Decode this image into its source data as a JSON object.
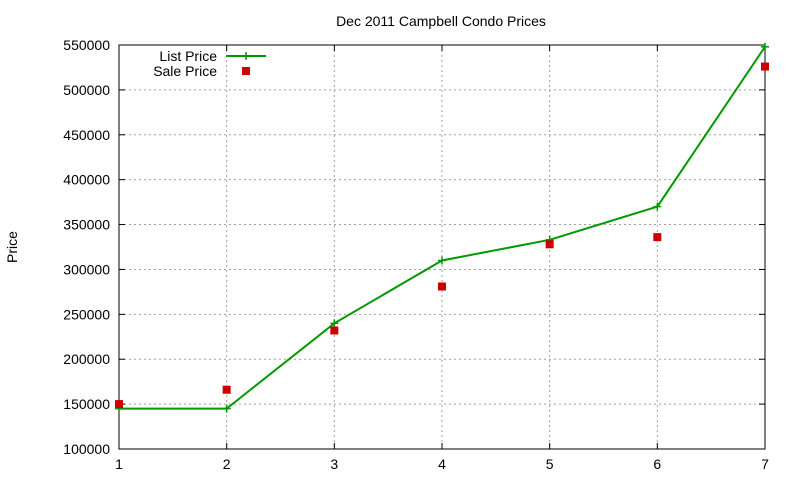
{
  "chart_data": {
    "type": "line",
    "title": "Dec 2011 Campbell Condo Prices",
    "xlabel": "",
    "ylabel": "Price",
    "xlim": [
      1,
      7
    ],
    "ylim": [
      100000,
      550000
    ],
    "x_ticks": [
      1,
      2,
      3,
      4,
      5,
      6,
      7
    ],
    "y_ticks": [
      100000,
      150000,
      200000,
      250000,
      300000,
      350000,
      400000,
      450000,
      500000,
      550000
    ],
    "grid": true,
    "legend_position": "top-left",
    "series": [
      {
        "name": "List Price",
        "style": "line-with-plus-markers",
        "color": "#009900",
        "x": [
          1,
          2,
          3,
          4,
          5,
          6,
          7
        ],
        "values": [
          145000,
          145000,
          240000,
          310000,
          333000,
          370000,
          548000
        ]
      },
      {
        "name": "Sale Price",
        "style": "square-markers",
        "color": "#cc0000",
        "x": [
          1,
          2,
          3,
          4,
          5,
          6,
          7
        ],
        "values": [
          150000,
          166000,
          232000,
          281000,
          328000,
          336000,
          526000
        ]
      }
    ]
  }
}
